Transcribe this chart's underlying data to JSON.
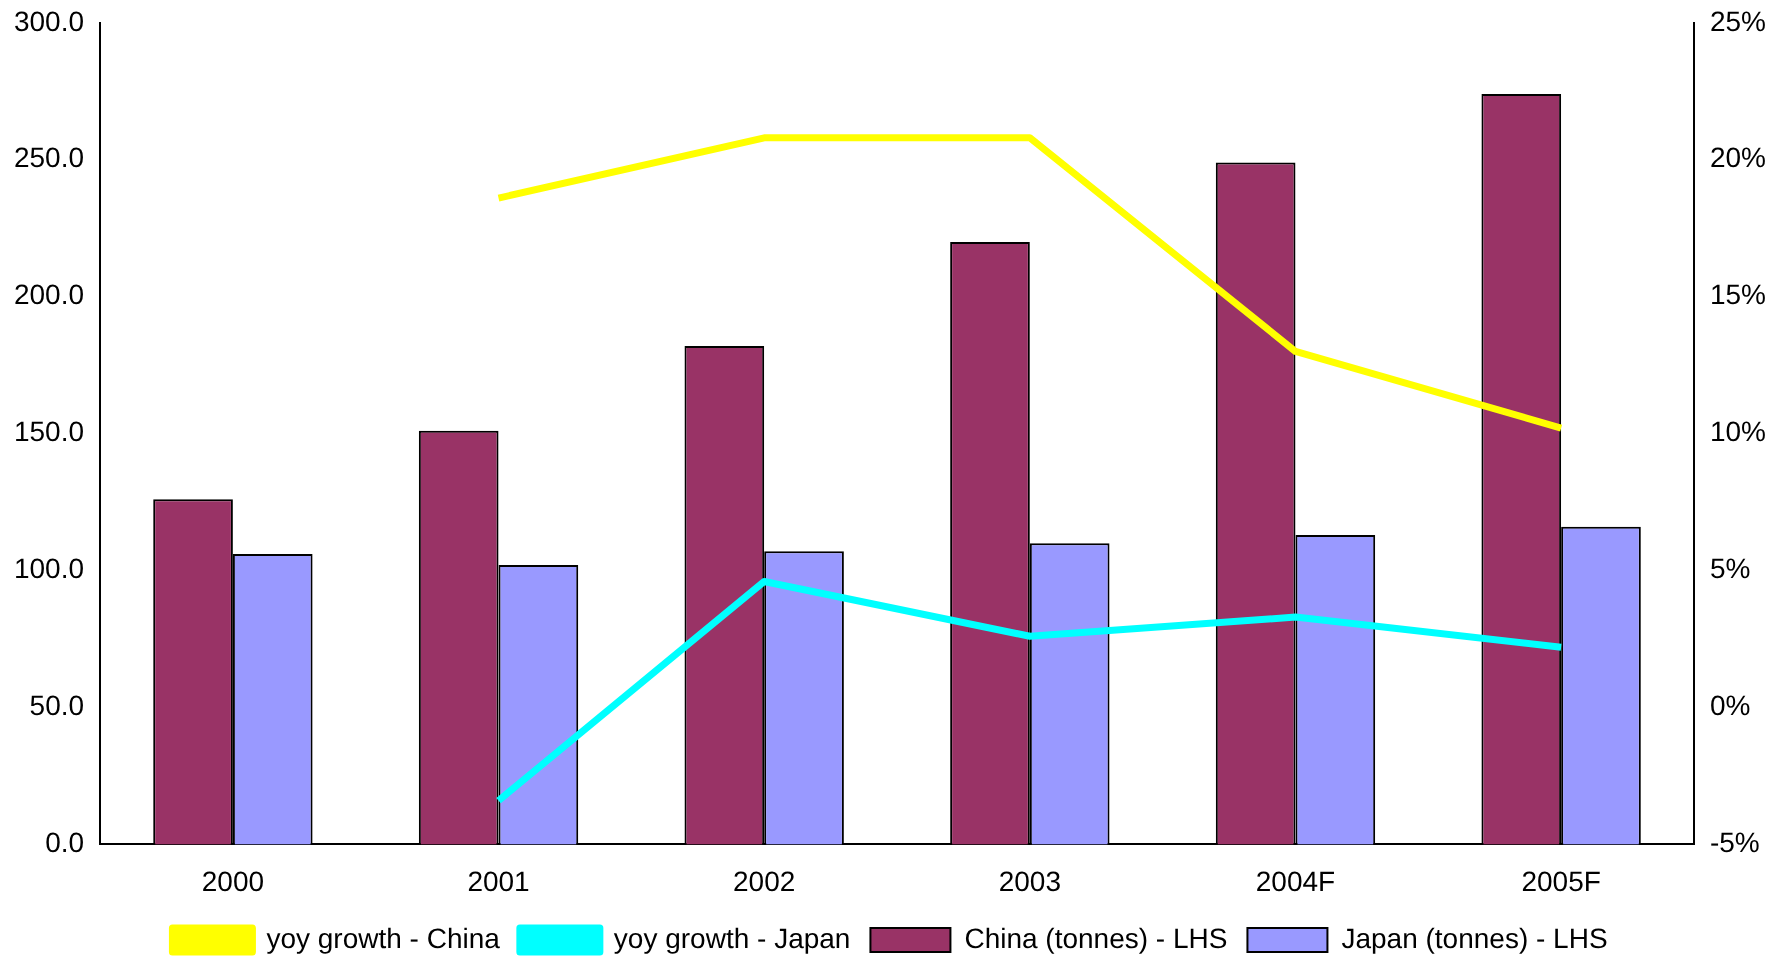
{
  "chart_data": {
    "type": "bar",
    "categories": [
      "2000",
      "2001",
      "2002",
      "2003",
      "2004F",
      "2005F"
    ],
    "series": [
      {
        "name": "China (tonnes) - LHS",
        "color": "#993366",
        "values": [
          126,
          151,
          182,
          220,
          249,
          274
        ]
      },
      {
        "name": "Japan (tonnes) - LHS",
        "color": "#9999ff",
        "values": [
          106,
          102,
          107,
          110,
          113,
          116
        ]
      },
      {
        "name": "yoy growth - China",
        "type": "line",
        "axis": "y2",
        "color": "#ffff00",
        "values": [
          null,
          18.6,
          20.8,
          20.8,
          13.0,
          10.2
        ]
      },
      {
        "name": "yoy growth - Japan",
        "type": "line",
        "axis": "y2",
        "color": "#00ffff",
        "values": [
          null,
          -3.4,
          4.6,
          2.6,
          3.3,
          2.2
        ]
      }
    ],
    "ylim": [
      0,
      300
    ],
    "yticks": [
      {
        "value": 0,
        "label": "0.0"
      },
      {
        "value": 50,
        "label": "50.0"
      },
      {
        "value": 100,
        "label": "100.0"
      },
      {
        "value": 150,
        "label": "150.0"
      },
      {
        "value": 200,
        "label": "200.0"
      },
      {
        "value": 250,
        "label": "250.0"
      },
      {
        "value": 300,
        "label": "300.0"
      }
    ],
    "y2lim": [
      -5,
      25
    ],
    "y2ticks": [
      {
        "value": -5,
        "label": "-5%"
      },
      {
        "value": 0,
        "label": "0%"
      },
      {
        "value": 5,
        "label": "5%"
      },
      {
        "value": 10,
        "label": "10%"
      },
      {
        "value": 15,
        "label": "15%"
      },
      {
        "value": 20,
        "label": "20%"
      },
      {
        "value": 25,
        "label": "25%"
      }
    ],
    "grid": false,
    "legend": "bottom",
    "marker": "none"
  }
}
